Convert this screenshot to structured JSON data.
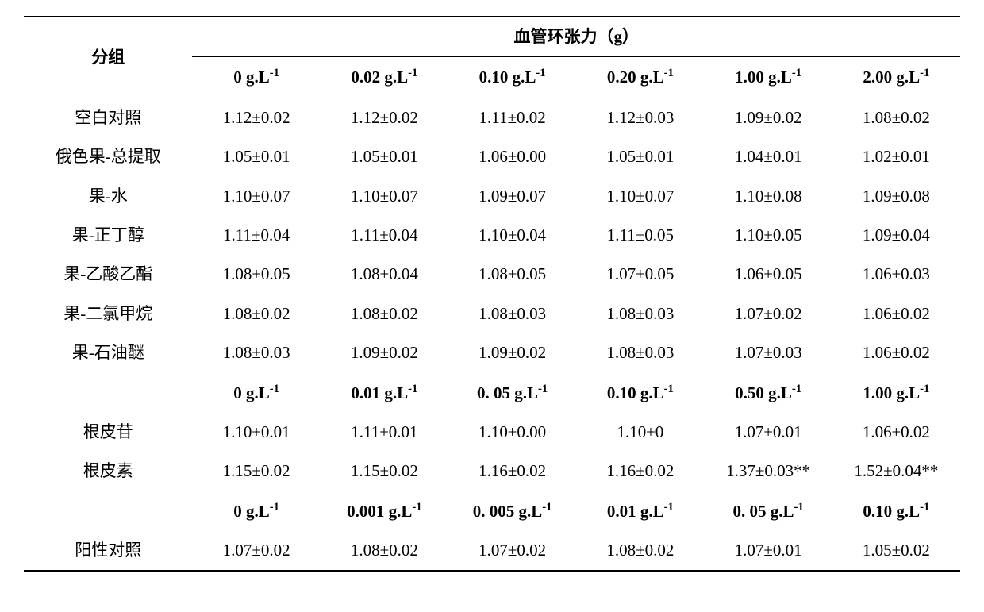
{
  "table": {
    "header": {
      "group_label": "分组",
      "tension_label": "血管环张力（g）"
    },
    "section1": {
      "concentrations": [
        "0 g.L⁻¹",
        "0.02 g.L⁻¹",
        "0.10 g.L⁻¹",
        "0.20 g.L⁻¹",
        "1.00 g.L⁻¹",
        "2.00 g.L⁻¹"
      ],
      "rows": [
        {
          "label": "空白对照",
          "values": [
            "1.12±0.02",
            "1.12±0.02",
            "1.11±0.02",
            "1.12±0.03",
            "1.09±0.02",
            "1.08±0.02"
          ]
        },
        {
          "label": "俄色果-总提取",
          "values": [
            "1.05±0.01",
            "1.05±0.01",
            "1.06±0.00",
            "1.05±0.01",
            "1.04±0.01",
            "1.02±0.01"
          ]
        },
        {
          "label": "果-水",
          "values": [
            "1.10±0.07",
            "1.10±0.07",
            "1.09±0.07",
            "1.10±0.07",
            "1.10±0.08",
            "1.09±0.08"
          ]
        },
        {
          "label": "果-正丁醇",
          "values": [
            "1.11±0.04",
            "1.11±0.04",
            "1.10±0.04",
            "1.11±0.05",
            "1.10±0.05",
            "1.09±0.04"
          ]
        },
        {
          "label": "果-乙酸乙酯",
          "values": [
            "1.08±0.05",
            "1.08±0.04",
            "1.08±0.05",
            "1.07±0.05",
            "1.06±0.05",
            "1.06±0.03"
          ]
        },
        {
          "label": "果-二氯甲烷",
          "values": [
            "1.08±0.02",
            "1.08±0.02",
            "1.08±0.03",
            "1.08±0.03",
            "1.07±0.02",
            "1.06±0.02"
          ]
        },
        {
          "label": "果-石油醚",
          "values": [
            "1.08±0.03",
            "1.09±0.02",
            "1.09±0.02",
            "1.08±0.03",
            "1.07±0.03",
            "1.06±0.02"
          ]
        }
      ]
    },
    "section2": {
      "concentrations": [
        "0 g.L⁻¹",
        "0.01 g.L⁻¹",
        "0. 05 g.L⁻¹",
        "0.10 g.L⁻¹",
        "0.50 g.L⁻¹",
        "1.00 g.L⁻¹"
      ],
      "rows": [
        {
          "label": "根皮苷",
          "values": [
            "1.10±0.01",
            "1.11±0.01",
            "1.10±0.00",
            "1.10±0",
            "1.07±0.01",
            "1.06±0.02"
          ]
        },
        {
          "label": "根皮素",
          "values": [
            "1.15±0.02",
            "1.15±0.02",
            "1.16±0.02",
            "1.16±0.02",
            "1.37±0.03**",
            "1.52±0.04**"
          ]
        }
      ]
    },
    "section3": {
      "concentrations": [
        "0 g.L⁻¹",
        "0.001 g.L⁻¹",
        "0. 005 g.L⁻¹",
        "0.01 g.L⁻¹",
        "0. 05 g.L⁻¹",
        "0.10 g.L⁻¹"
      ],
      "rows": [
        {
          "label": "阳性对照",
          "values": [
            "1.07±0.02",
            "1.08±0.02",
            "1.07±0.02",
            "1.08±0.02",
            "1.07±0.01",
            "1.05±0.02"
          ]
        }
      ]
    }
  },
  "style": {
    "font_size_body": 21,
    "font_size_header": 21,
    "background_color": "#ffffff",
    "text_color": "#000000",
    "border_color": "#000000",
    "border_width_thick": 2,
    "border_width_thin": 1.5,
    "font_family": "Times New Roman, SimSun, serif"
  }
}
